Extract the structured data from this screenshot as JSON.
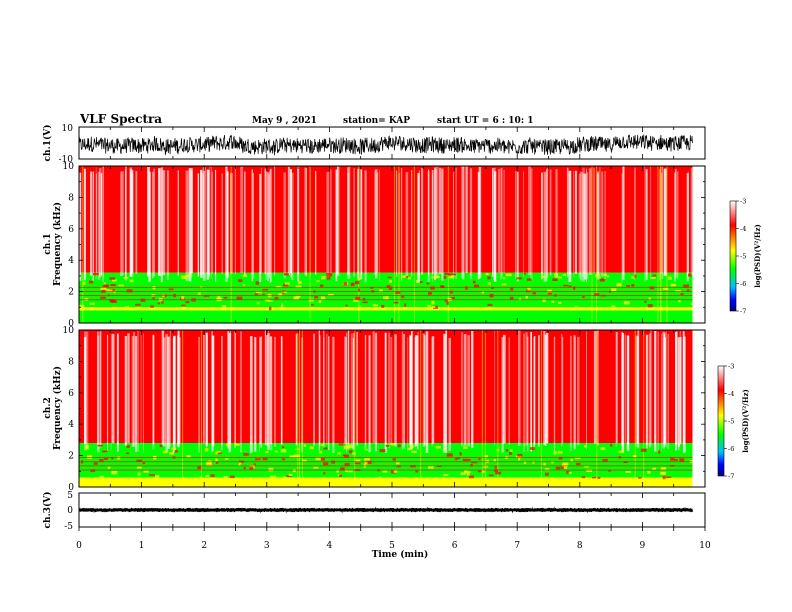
{
  "header": {
    "title": "VLF Spectra",
    "date": "May 9 , 2021",
    "station": "station= KAP",
    "start": "start UT = 6 : 10: 1"
  },
  "chart_data": [
    {
      "type": "line",
      "ylabel": "ch.1(V)",
      "ylim": [
        -10,
        10
      ],
      "yticks": [
        "10",
        "-10"
      ],
      "xlim": [
        0,
        10
      ],
      "description_series": "dense noisy waveform oscillating roughly between -9 and 6 V over 0 to 9.8 min"
    },
    {
      "type": "heatmap",
      "ylabel": "ch.1\nFrequency (kHz)",
      "ylim": [
        0,
        10
      ],
      "yticks": [
        0,
        2,
        4,
        6,
        8,
        10
      ],
      "xlim": [
        0,
        10
      ],
      "colorbar": {
        "label": "log(PSD)(V²/Hz)",
        "range": [
          -7,
          -3
        ],
        "ticks": [
          "-3",
          "-4",
          "-5",
          "-6",
          "-7"
        ]
      },
      "bands": [
        {
          "freq_range_khz": [
            3.2,
            10
          ],
          "log_psd": -3.3
        },
        {
          "freq_range_khz": [
            1.0,
            3.2
          ],
          "log_psd": -4.5
        },
        {
          "freq_range_khz": [
            0.8,
            1.0
          ],
          "log_psd": -4.0
        },
        {
          "freq_range_khz": [
            0,
            0.8
          ],
          "log_psd": -4.2
        }
      ]
    },
    {
      "type": "heatmap",
      "ylabel": "ch.2\nFrequency (kHz)",
      "ylim": [
        0,
        10
      ],
      "yticks": [
        0,
        2,
        4,
        6,
        8,
        10
      ],
      "xlim": [
        0,
        10
      ],
      "colorbar": {
        "label": "log(PSD)(V²/Hz)",
        "range": [
          -7,
          -3
        ],
        "ticks": [
          "-3",
          "-4",
          "-5",
          "-6",
          "-7"
        ]
      },
      "bands": [
        {
          "freq_range_khz": [
            2.8,
            10
          ],
          "log_psd": -3.3
        },
        {
          "freq_range_khz": [
            0.6,
            2.8
          ],
          "log_psd": -4.5
        },
        {
          "freq_range_khz": [
            0,
            0.6
          ],
          "log_psd": -4.0
        }
      ]
    },
    {
      "type": "line",
      "ylabel": "ch.3(V)",
      "ylim": [
        -5,
        5
      ],
      "yticks": [
        "5",
        "0",
        "-5"
      ],
      "xlim": [
        0,
        10
      ],
      "series_level_v": 0,
      "series_amplitude_v": 0.6
    }
  ],
  "xaxis": {
    "label": "Time (min)",
    "ticks": [
      "0",
      "1",
      "2",
      "3",
      "4",
      "5",
      "6",
      "7",
      "8",
      "9",
      "10"
    ],
    "data_end_min": 9.8
  },
  "colors": {
    "high": "#ff0000",
    "mid": "#ffff00",
    "low": "#00ff00",
    "lower": "#00c0ff",
    "lowest": "#0000a0",
    "white": "#ffffff"
  }
}
